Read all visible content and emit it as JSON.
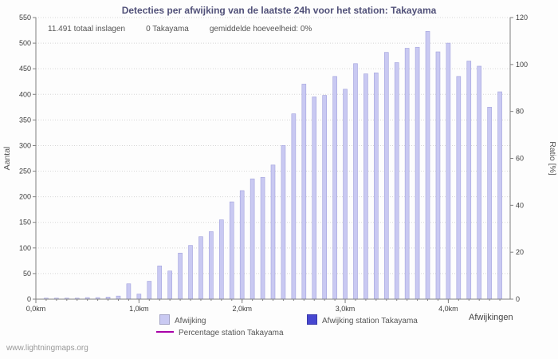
{
  "chart_data": {
    "type": "bar",
    "title": "Detecties per afwijking van de laatste 24h voor het station: Takayama",
    "info": {
      "total_strikes": "11.491 totaal inslagen",
      "station_strikes": "0 Takayama",
      "average_ratio": "gemiddelde hoeveelheid: 0%"
    },
    "xlabel": "Afwijkingen",
    "ylabel_left": "Aantal",
    "ylabel_right": "Ratio [%]",
    "xlim": [
      0,
      4.6
    ],
    "ylim_left": [
      0,
      550
    ],
    "ytick_step_left": 50,
    "ylim_right": [
      0,
      120
    ],
    "ytick_step_right": 20,
    "grid": true,
    "legend_position": "bottom",
    "x": [
      0,
      0.1,
      0.2,
      0.3,
      0.4,
      0.5,
      0.6,
      0.7,
      0.8,
      0.9,
      1,
      1.1,
      1.2,
      1.3,
      1.4,
      1.5,
      1.6,
      1.7,
      1.8,
      1.9,
      2,
      2.1,
      2.2,
      2.3,
      2.4,
      2.5,
      2.6,
      2.7,
      2.8,
      2.9,
      3,
      3.1,
      3.2,
      3.3,
      3.4,
      3.5,
      3.6,
      3.7,
      3.8,
      3.9,
      4,
      4.1,
      4.2,
      4.3,
      4.4,
      4.5
    ],
    "xticks": [
      {
        "pos": 0,
        "label": "0,0km"
      },
      {
        "pos": 1,
        "label": "1,0km"
      },
      {
        "pos": 2,
        "label": "2,0km"
      },
      {
        "pos": 3,
        "label": "3,0km"
      },
      {
        "pos": 4,
        "label": "4,0km"
      }
    ],
    "series": [
      {
        "name": "Afwijking",
        "type": "bar",
        "color": "#c9c9f2",
        "edge_color": "#a2a2dd",
        "values": [
          0,
          2,
          2,
          2,
          2,
          3,
          3,
          4,
          6,
          30,
          10,
          35,
          65,
          55,
          90,
          105,
          122,
          132,
          155,
          190,
          212,
          235,
          238,
          262,
          300,
          362,
          420,
          395,
          398,
          435,
          410,
          460,
          440,
          442,
          482,
          462,
          490,
          492,
          523,
          483,
          500,
          435,
          465,
          455,
          375,
          405
        ]
      },
      {
        "name": "Afwijking station Takayama",
        "type": "bar",
        "color": "#4747d1",
        "edge_color": "#3a3ab8",
        "values": []
      },
      {
        "name": "Percentage station Takayama",
        "type": "line",
        "color": "#a800a8",
        "values": []
      }
    ]
  },
  "watermark": "www.lightningmaps.org"
}
